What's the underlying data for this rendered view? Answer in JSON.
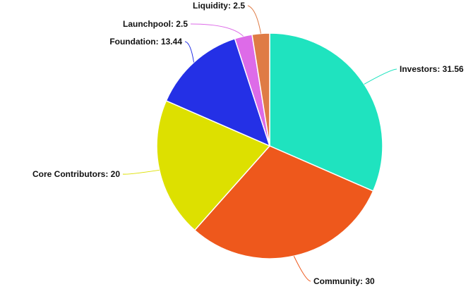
{
  "chart_data": {
    "type": "pie",
    "title": "",
    "label_separator": ": ",
    "slices": [
      {
        "label": "Investors",
        "value": 31.56,
        "display": "31.56",
        "color": "#1fe3bf"
      },
      {
        "label": "Community",
        "value": 30,
        "display": "30",
        "color": "#ee581c"
      },
      {
        "label": "Core Contributors",
        "value": 20,
        "display": "20",
        "color": "#dde000"
      },
      {
        "label": "Foundation",
        "value": 13.44,
        "display": "13.44",
        "color": "#2430e6"
      },
      {
        "label": "Launchpool",
        "value": 2.5,
        "display": "2.5",
        "color": "#dd6be8"
      },
      {
        "label": "Liquidity",
        "value": 2.5,
        "display": "2.5",
        "color": "#df7b45"
      }
    ]
  }
}
